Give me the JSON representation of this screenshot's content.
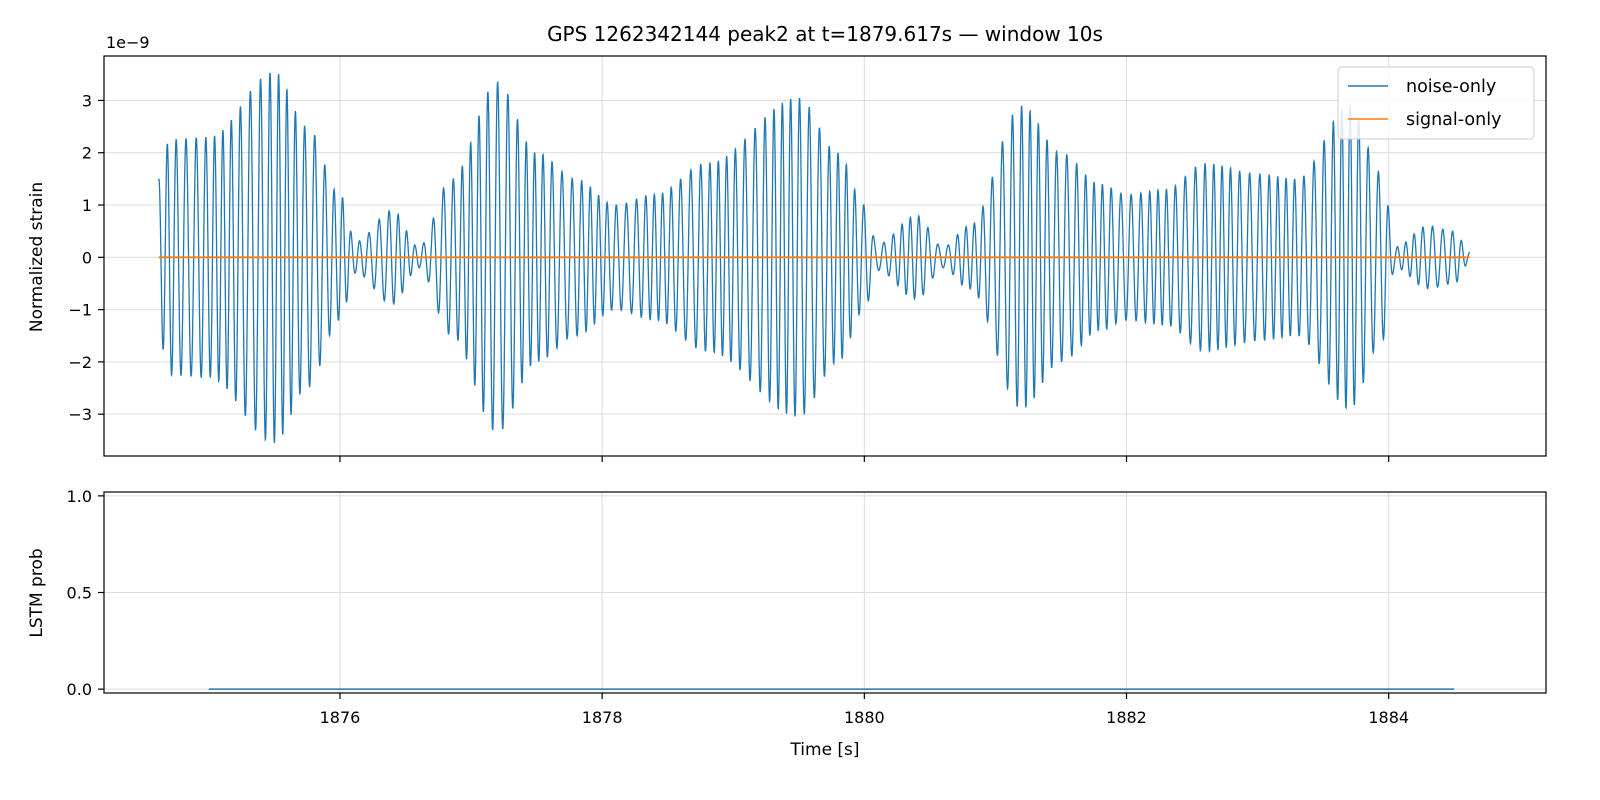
{
  "chart_data": [
    {
      "type": "line",
      "title": "GPS 1262342144 peak2 at t=1879.617s — window 10s",
      "xlabel": "",
      "ylabel": "Normalized strain",
      "offset_text": "1e−9",
      "xlim": [
        1874.2,
        1885.2
      ],
      "ylim": [
        -3.8,
        3.85
      ],
      "yticks": [
        -3,
        -2,
        -1,
        0,
        1,
        2,
        3
      ],
      "ytick_labels": [
        "−3",
        "−2",
        "−1",
        "0",
        "1",
        "2",
        "3"
      ],
      "grid": true,
      "legend": {
        "placement": "top-right",
        "entries": [
          "noise-only",
          "signal-only"
        ]
      },
      "series": [
        {
          "name": "noise-only",
          "color": "#1f77b4",
          "x_range": [
            1874.617,
            1884.617
          ],
          "envelope_peaks": [
            {
              "t": 1874.617,
              "v": 1.5
            },
            {
              "t": 1874.7,
              "v": 2.25
            },
            {
              "t": 1875.0,
              "v": 2.3
            },
            {
              "t": 1875.5,
              "v": 3.55
            },
            {
              "t": 1875.75,
              "v": 2.5
            },
            {
              "t": 1876.0,
              "v": 1.2
            },
            {
              "t": 1876.12,
              "v": 0.3
            },
            {
              "t": 1876.4,
              "v": 0.9
            },
            {
              "t": 1876.6,
              "v": 0.2
            },
            {
              "t": 1876.85,
              "v": 1.5
            },
            {
              "t": 1877.2,
              "v": 3.35
            },
            {
              "t": 1877.5,
              "v": 2.0
            },
            {
              "t": 1877.8,
              "v": 1.5
            },
            {
              "t": 1878.1,
              "v": 1.0
            },
            {
              "t": 1878.4,
              "v": 1.2
            },
            {
              "t": 1878.8,
              "v": 1.8
            },
            {
              "t": 1879.5,
              "v": 3.05
            },
            {
              "t": 1879.8,
              "v": 2.0
            },
            {
              "t": 1880.0,
              "v": 1.0
            },
            {
              "t": 1880.1,
              "v": 0.25
            },
            {
              "t": 1880.4,
              "v": 0.8
            },
            {
              "t": 1880.6,
              "v": 0.2
            },
            {
              "t": 1880.8,
              "v": 0.6
            },
            {
              "t": 1881.2,
              "v": 2.9
            },
            {
              "t": 1881.5,
              "v": 2.0
            },
            {
              "t": 1881.8,
              "v": 1.4
            },
            {
              "t": 1882.0,
              "v": 1.2
            },
            {
              "t": 1882.3,
              "v": 1.3
            },
            {
              "t": 1882.6,
              "v": 1.8
            },
            {
              "t": 1883.0,
              "v": 1.6
            },
            {
              "t": 1883.3,
              "v": 1.5
            },
            {
              "t": 1883.7,
              "v": 2.9
            },
            {
              "t": 1883.95,
              "v": 1.6
            },
            {
              "t": 1884.05,
              "v": 0.2
            },
            {
              "t": 1884.3,
              "v": 0.6
            },
            {
              "t": 1884.5,
              "v": 0.5
            },
            {
              "t": 1884.617,
              "v": 0.1
            }
          ],
          "approx_frequency_hz": 14.3
        },
        {
          "name": "signal-only",
          "color": "#ff7f0e",
          "x": [
            1874.617,
            1884.617
          ],
          "y": [
            0,
            0
          ]
        }
      ]
    },
    {
      "type": "line",
      "title": "",
      "xlabel": "Time [s]",
      "ylabel": "LSTM prob",
      "xlim": [
        1874.2,
        1885.2
      ],
      "ylim": [
        -0.02,
        1.02
      ],
      "xticks": [
        1876,
        1878,
        1880,
        1882,
        1884
      ],
      "xtick_labels": [
        "1876",
        "1878",
        "1880",
        "1882",
        "1884"
      ],
      "yticks": [
        0.0,
        0.5,
        1.0
      ],
      "ytick_labels": [
        "0.0",
        "0.5",
        "1.0"
      ],
      "grid": true,
      "series": [
        {
          "color": "#1f77b4",
          "x": [
            1875.0,
            1884.5
          ],
          "y": [
            0,
            0
          ]
        }
      ]
    }
  ]
}
